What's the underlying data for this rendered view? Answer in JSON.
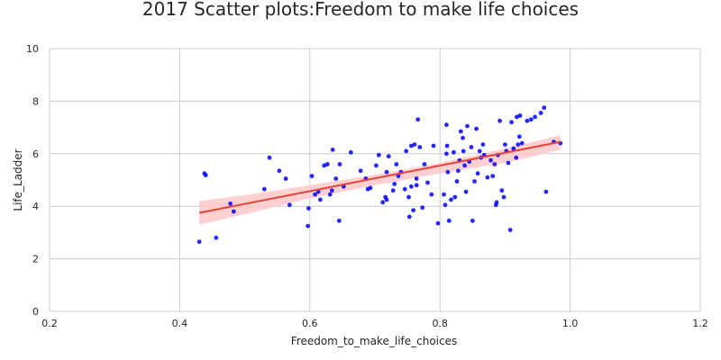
{
  "chart_data": {
    "type": "scatter",
    "title": "2017 Scatter plots:Freedom to make life choices",
    "xlabel": "Freedom_to_make_life_choices",
    "ylabel": "Life_Ladder",
    "xlim": [
      0.2,
      1.2
    ],
    "ylim": [
      0,
      10
    ],
    "x_ticks": [
      "0.2",
      "0.4",
      "0.6",
      "0.8",
      "1.0",
      "1.2"
    ],
    "y_ticks": [
      "0",
      "2",
      "4",
      "6",
      "8",
      "10"
    ],
    "grid": true,
    "colors": {
      "points": "#0000ff",
      "regression": "#e8413a",
      "confidence_band": "#ffc8c8",
      "grid": "#cccccc",
      "text": "#262626"
    },
    "regression_line": {
      "x": [
        0.43,
        0.985
      ],
      "y": [
        3.75,
        6.45
      ]
    },
    "confidence_band": {
      "x": [
        0.43,
        0.5,
        0.6,
        0.7,
        0.8,
        0.9,
        0.985
      ],
      "upper": [
        4.2,
        4.42,
        4.8,
        5.2,
        5.65,
        6.2,
        6.7
      ],
      "lower": [
        3.3,
        3.7,
        4.3,
        4.8,
        5.25,
        5.65,
        6.15
      ]
    },
    "points": [
      [
        0.43,
        2.65
      ],
      [
        0.438,
        5.25
      ],
      [
        0.44,
        5.18
      ],
      [
        0.456,
        2.8
      ],
      [
        0.478,
        4.1
      ],
      [
        0.483,
        3.8
      ],
      [
        0.53,
        4.65
      ],
      [
        0.538,
        5.85
      ],
      [
        0.553,
        5.35
      ],
      [
        0.563,
        5.05
      ],
      [
        0.569,
        4.05
      ],
      [
        0.597,
        3.25
      ],
      [
        0.598,
        3.92
      ],
      [
        0.603,
        5.15
      ],
      [
        0.608,
        4.45
      ],
      [
        0.613,
        4.55
      ],
      [
        0.616,
        4.25
      ],
      [
        0.622,
        5.55
      ],
      [
        0.627,
        5.6
      ],
      [
        0.631,
        4.45
      ],
      [
        0.634,
        4.6
      ],
      [
        0.635,
        6.15
      ],
      [
        0.64,
        5.05
      ],
      [
        0.645,
        3.45
      ],
      [
        0.646,
        5.6
      ],
      [
        0.652,
        4.75
      ],
      [
        0.663,
        6.05
      ],
      [
        0.678,
        5.35
      ],
      [
        0.686,
        5.05
      ],
      [
        0.689,
        4.65
      ],
      [
        0.693,
        4.7
      ],
      [
        0.702,
        5.55
      ],
      [
        0.706,
        5.95
      ],
      [
        0.712,
        4.15
      ],
      [
        0.716,
        4.35
      ],
      [
        0.718,
        4.25
      ],
      [
        0.718,
        5.3
      ],
      [
        0.721,
        5.9
      ],
      [
        0.728,
        4.6
      ],
      [
        0.73,
        4.85
      ],
      [
        0.733,
        5.6
      ],
      [
        0.736,
        5.15
      ],
      [
        0.74,
        5.3
      ],
      [
        0.746,
        4.65
      ],
      [
        0.748,
        6.1
      ],
      [
        0.752,
        4.35
      ],
      [
        0.753,
        3.6
      ],
      [
        0.756,
        4.75
      ],
      [
        0.756,
        6.3
      ],
      [
        0.759,
        3.85
      ],
      [
        0.761,
        6.35
      ],
      [
        0.764,
        4.8
      ],
      [
        0.764,
        5.05
      ],
      [
        0.766,
        7.3
      ],
      [
        0.769,
        6.25
      ],
      [
        0.773,
        3.95
      ],
      [
        0.776,
        5.6
      ],
      [
        0.781,
        4.9
      ],
      [
        0.787,
        4.45
      ],
      [
        0.79,
        6.3
      ],
      [
        0.797,
        3.35
      ],
      [
        0.806,
        4.45
      ],
      [
        0.808,
        4.05
      ],
      [
        0.81,
        7.1
      ],
      [
        0.81,
        6.0
      ],
      [
        0.811,
        6.3
      ],
      [
        0.812,
        5.3
      ],
      [
        0.814,
        3.45
      ],
      [
        0.817,
        4.25
      ],
      [
        0.821,
        6.05
      ],
      [
        0.823,
        4.35
      ],
      [
        0.826,
        4.95
      ],
      [
        0.828,
        5.35
      ],
      [
        0.83,
        5.75
      ],
      [
        0.832,
        6.85
      ],
      [
        0.835,
        6.6
      ],
      [
        0.836,
        6.1
      ],
      [
        0.838,
        5.55
      ],
      [
        0.84,
        4.55
      ],
      [
        0.842,
        7.05
      ],
      [
        0.845,
        5.7
      ],
      [
        0.848,
        6.25
      ],
      [
        0.85,
        3.45
      ],
      [
        0.853,
        4.95
      ],
      [
        0.856,
        6.95
      ],
      [
        0.858,
        5.25
      ],
      [
        0.861,
        6.1
      ],
      [
        0.863,
        5.85
      ],
      [
        0.866,
        6.35
      ],
      [
        0.868,
        5.95
      ],
      [
        0.873,
        5.1
      ],
      [
        0.878,
        5.75
      ],
      [
        0.881,
        5.15
      ],
      [
        0.884,
        5.6
      ],
      [
        0.886,
        4.05
      ],
      [
        0.887,
        4.15
      ],
      [
        0.889,
        5.95
      ],
      [
        0.892,
        7.25
      ],
      [
        0.895,
        4.6
      ],
      [
        0.898,
        4.35
      ],
      [
        0.9,
        6.35
      ],
      [
        0.902,
        6.1
      ],
      [
        0.905,
        5.65
      ],
      [
        0.908,
        3.1
      ],
      [
        0.91,
        7.2
      ],
      [
        0.913,
        6.2
      ],
      [
        0.917,
        5.85
      ],
      [
        0.918,
        7.4
      ],
      [
        0.92,
        6.35
      ],
      [
        0.922,
        6.65
      ],
      [
        0.923,
        7.45
      ],
      [
        0.926,
        6.4
      ],
      [
        0.934,
        7.25
      ],
      [
        0.94,
        7.3
      ],
      [
        0.946,
        7.4
      ],
      [
        0.955,
        7.55
      ],
      [
        0.96,
        7.75
      ],
      [
        0.963,
        4.55
      ],
      [
        0.975,
        6.45
      ],
      [
        0.985,
        6.4
      ]
    ]
  }
}
